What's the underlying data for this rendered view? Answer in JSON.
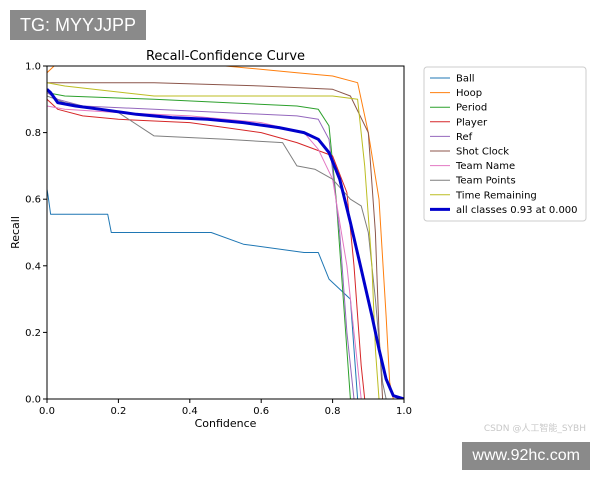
{
  "watermark": {
    "tg": "TG: MYYJJPP",
    "site": "www.92hc.com",
    "csdn": "CSDN @人工智能_SYBH"
  },
  "chart_data": {
    "type": "line",
    "title": "Recall-Confidence Curve",
    "xlabel": "Confidence",
    "ylabel": "Recall",
    "xlim": [
      0,
      1
    ],
    "ylim": [
      0,
      1
    ],
    "xticks": [
      "0.0",
      "0.2",
      "0.4",
      "0.6",
      "0.8",
      "1.0"
    ],
    "yticks": [
      "0.0",
      "0.2",
      "0.4",
      "0.6",
      "0.8",
      "1.0"
    ],
    "grid": false,
    "legend_position": "outside-right",
    "series": [
      {
        "name": "Ball",
        "color": "#1f77b4",
        "width": 1,
        "points": [
          [
            0,
            0.63
          ],
          [
            0.003,
            0.61
          ],
          [
            0.01,
            0.555
          ],
          [
            0.17,
            0.555
          ],
          [
            0.18,
            0.5
          ],
          [
            0.46,
            0.5
          ],
          [
            0.55,
            0.465
          ],
          [
            0.72,
            0.44
          ],
          [
            0.76,
            0.44
          ],
          [
            0.79,
            0.36
          ],
          [
            0.82,
            0.33
          ],
          [
            0.85,
            0.3
          ],
          [
            0.86,
            0.15
          ],
          [
            0.87,
            0.0
          ]
        ]
      },
      {
        "name": "Hoop",
        "color": "#ff7f0e",
        "width": 1,
        "points": [
          [
            0,
            0.98
          ],
          [
            0.02,
            1.0
          ],
          [
            0.5,
            1.0
          ],
          [
            0.7,
            0.98
          ],
          [
            0.8,
            0.97
          ],
          [
            0.87,
            0.95
          ],
          [
            0.9,
            0.8
          ],
          [
            0.93,
            0.6
          ],
          [
            0.95,
            0.25
          ],
          [
            0.96,
            0.05
          ],
          [
            0.97,
            0.0
          ]
        ]
      },
      {
        "name": "Period",
        "color": "#2ca02c",
        "width": 1,
        "points": [
          [
            0,
            0.92
          ],
          [
            0.05,
            0.91
          ],
          [
            0.3,
            0.9
          ],
          [
            0.5,
            0.89
          ],
          [
            0.7,
            0.88
          ],
          [
            0.76,
            0.87
          ],
          [
            0.79,
            0.82
          ],
          [
            0.81,
            0.6
          ],
          [
            0.83,
            0.3
          ],
          [
            0.85,
            0.0
          ]
        ]
      },
      {
        "name": "Player",
        "color": "#d62728",
        "width": 1,
        "points": [
          [
            0,
            0.9
          ],
          [
            0.03,
            0.87
          ],
          [
            0.1,
            0.85
          ],
          [
            0.2,
            0.84
          ],
          [
            0.4,
            0.83
          ],
          [
            0.6,
            0.8
          ],
          [
            0.7,
            0.77
          ],
          [
            0.8,
            0.73
          ],
          [
            0.84,
            0.62
          ],
          [
            0.86,
            0.4
          ],
          [
            0.88,
            0.1
          ],
          [
            0.89,
            0.0
          ]
        ]
      },
      {
        "name": "Ref",
        "color": "#9467bd",
        "width": 1,
        "points": [
          [
            0,
            0.92
          ],
          [
            0.03,
            0.9
          ],
          [
            0.1,
            0.88
          ],
          [
            0.3,
            0.87
          ],
          [
            0.5,
            0.86
          ],
          [
            0.7,
            0.85
          ],
          [
            0.76,
            0.84
          ],
          [
            0.79,
            0.78
          ],
          [
            0.82,
            0.5
          ],
          [
            0.84,
            0.2
          ],
          [
            0.86,
            0.0
          ]
        ]
      },
      {
        "name": "Shot Clock",
        "color": "#8c564b",
        "width": 1,
        "points": [
          [
            0,
            0.95
          ],
          [
            0.05,
            0.95
          ],
          [
            0.3,
            0.95
          ],
          [
            0.6,
            0.94
          ],
          [
            0.8,
            0.93
          ],
          [
            0.85,
            0.91
          ],
          [
            0.9,
            0.8
          ],
          [
            0.92,
            0.5
          ],
          [
            0.93,
            0.2
          ],
          [
            0.94,
            0.0
          ]
        ]
      },
      {
        "name": "Team Name",
        "color": "#e377c2",
        "width": 1,
        "points": [
          [
            0,
            0.88
          ],
          [
            0.05,
            0.87
          ],
          [
            0.2,
            0.86
          ],
          [
            0.4,
            0.85
          ],
          [
            0.6,
            0.83
          ],
          [
            0.72,
            0.8
          ],
          [
            0.76,
            0.75
          ],
          [
            0.8,
            0.66
          ],
          [
            0.84,
            0.4
          ],
          [
            0.86,
            0.2
          ],
          [
            0.88,
            0.0
          ]
        ]
      },
      {
        "name": "Team Points",
        "color": "#7f7f7f",
        "width": 1,
        "points": [
          [
            0,
            0.91
          ],
          [
            0.05,
            0.89
          ],
          [
            0.2,
            0.86
          ],
          [
            0.3,
            0.79
          ],
          [
            0.5,
            0.78
          ],
          [
            0.66,
            0.77
          ],
          [
            0.7,
            0.7
          ],
          [
            0.75,
            0.69
          ],
          [
            0.8,
            0.66
          ],
          [
            0.85,
            0.6
          ],
          [
            0.88,
            0.58
          ],
          [
            0.9,
            0.5
          ],
          [
            0.92,
            0.3
          ],
          [
            0.94,
            0.05
          ],
          [
            0.95,
            0.0
          ]
        ]
      },
      {
        "name": "Time Remaining",
        "color": "#bcbd22",
        "width": 1,
        "points": [
          [
            0,
            0.95
          ],
          [
            0.05,
            0.94
          ],
          [
            0.3,
            0.91
          ],
          [
            0.6,
            0.91
          ],
          [
            0.8,
            0.91
          ],
          [
            0.87,
            0.9
          ],
          [
            0.89,
            0.7
          ],
          [
            0.91,
            0.4
          ],
          [
            0.92,
            0.15
          ],
          [
            0.93,
            0.0
          ]
        ]
      },
      {
        "name": "all classes 0.93 at 0.000",
        "color": "#0000cc",
        "width": 3,
        "points": [
          [
            0,
            0.93
          ],
          [
            0.01,
            0.92
          ],
          [
            0.03,
            0.89
          ],
          [
            0.08,
            0.88
          ],
          [
            0.15,
            0.87
          ],
          [
            0.25,
            0.855
          ],
          [
            0.35,
            0.845
          ],
          [
            0.45,
            0.84
          ],
          [
            0.55,
            0.83
          ],
          [
            0.65,
            0.815
          ],
          [
            0.72,
            0.8
          ],
          [
            0.76,
            0.78
          ],
          [
            0.79,
            0.74
          ],
          [
            0.82,
            0.66
          ],
          [
            0.85,
            0.53
          ],
          [
            0.88,
            0.39
          ],
          [
            0.91,
            0.25
          ],
          [
            0.93,
            0.15
          ],
          [
            0.95,
            0.06
          ],
          [
            0.97,
            0.01
          ],
          [
            1.0,
            0.0
          ]
        ]
      }
    ]
  }
}
